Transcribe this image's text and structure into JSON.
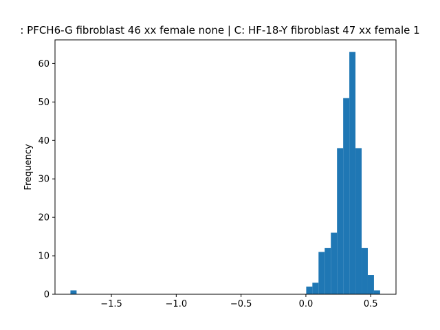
{
  "chart_data": {
    "type": "bar",
    "title": ": PFCH6-G fibroblast 46 xx female none | C: HF-18-Y fibroblast 47 xx female 1",
    "xlabel": "",
    "ylabel": "Frequency",
    "xlim": [
      -1.935,
      0.695
    ],
    "ylim": [
      0,
      66.15
    ],
    "grid": false,
    "bin_width": 0.0475,
    "bins": [
      {
        "x": -1.816,
        "count": 1
      },
      {
        "x": 0.0025,
        "count": 2
      },
      {
        "x": 0.05,
        "count": 3
      },
      {
        "x": 0.0975,
        "count": 11
      },
      {
        "x": 0.145,
        "count": 12
      },
      {
        "x": 0.1925,
        "count": 16
      },
      {
        "x": 0.24,
        "count": 38
      },
      {
        "x": 0.2875,
        "count": 51
      },
      {
        "x": 0.335,
        "count": 63
      },
      {
        "x": 0.3825,
        "count": 38
      },
      {
        "x": 0.43,
        "count": 12
      },
      {
        "x": 0.4775,
        "count": 5
      },
      {
        "x": 0.525,
        "count": 1
      }
    ],
    "x_ticks": [
      {
        "value": -1.5,
        "label": "−1.5"
      },
      {
        "value": -1.0,
        "label": "−1.0"
      },
      {
        "value": -0.5,
        "label": "−0.5"
      },
      {
        "value": 0.0,
        "label": "0.0"
      },
      {
        "value": 0.5,
        "label": "0.5"
      }
    ],
    "y_ticks": [
      {
        "value": 0,
        "label": "0"
      },
      {
        "value": 10,
        "label": "10"
      },
      {
        "value": 20,
        "label": "20"
      },
      {
        "value": 30,
        "label": "30"
      },
      {
        "value": 40,
        "label": "40"
      },
      {
        "value": 50,
        "label": "50"
      },
      {
        "value": 60,
        "label": "60"
      }
    ],
    "colors": {
      "bar": "#1f77b4",
      "axis": "#000000"
    }
  }
}
